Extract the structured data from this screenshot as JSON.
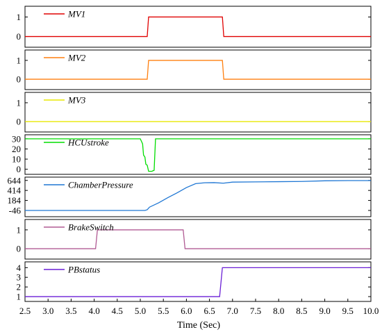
{
  "chart_data": [
    {
      "type": "line",
      "series": [
        {
          "name": "MV1",
          "color": "#e00000",
          "points": [
            [
              2.5,
              0
            ],
            [
              5.15,
              0
            ],
            [
              5.18,
              1
            ],
            [
              6.78,
              1
            ],
            [
              6.81,
              0
            ],
            [
              10.0,
              0
            ]
          ]
        }
      ],
      "yticks": [
        0,
        1
      ],
      "ytick_labels": [
        "0",
        "1"
      ],
      "ylim": [
        -0.55,
        1.55
      ],
      "xlim": [
        2.5,
        10.0
      ],
      "grid": false,
      "legend": "top-left"
    },
    {
      "type": "line",
      "series": [
        {
          "name": "MV2",
          "color": "#ff7f0e",
          "points": [
            [
              2.5,
              0
            ],
            [
              5.15,
              0
            ],
            [
              5.18,
              1
            ],
            [
              6.78,
              1
            ],
            [
              6.81,
              0
            ],
            [
              10.0,
              0
            ]
          ]
        }
      ],
      "yticks": [
        0,
        1
      ],
      "ytick_labels": [
        "0",
        "1"
      ],
      "ylim": [
        -0.55,
        1.55
      ],
      "xlim": [
        2.5,
        10.0
      ],
      "grid": false,
      "legend": "top-left"
    },
    {
      "type": "line",
      "series": [
        {
          "name": "MV3",
          "color": "#e8e800",
          "points": [
            [
              2.5,
              0
            ],
            [
              10.0,
              0
            ]
          ]
        }
      ],
      "yticks": [
        0,
        1
      ],
      "ytick_labels": [
        "0",
        "1"
      ],
      "ylim": [
        -0.55,
        1.55
      ],
      "xlim": [
        2.5,
        10.0
      ],
      "grid": false,
      "legend": "top-left"
    },
    {
      "type": "line",
      "series": [
        {
          "name": "HCUstroke",
          "color": "#00dd00",
          "points": [
            [
              2.5,
              30
            ],
            [
              5.0,
              30
            ],
            [
              5.05,
              25
            ],
            [
              5.07,
              14
            ],
            [
              5.1,
              12
            ],
            [
              5.12,
              5
            ],
            [
              5.15,
              4
            ],
            [
              5.18,
              -2
            ],
            [
              5.25,
              -2
            ],
            [
              5.3,
              -1
            ],
            [
              5.33,
              30
            ],
            [
              10.0,
              30
            ]
          ]
        }
      ],
      "yticks": [
        0,
        10,
        20,
        30
      ],
      "ytick_labels": [
        "0",
        "10",
        "20",
        "30"
      ],
      "ylim": [
        -5,
        34
      ],
      "xlim": [
        2.5,
        10.0
      ],
      "grid": false,
      "legend": "top-left"
    },
    {
      "type": "line",
      "series": [
        {
          "name": "ChamberPressure",
          "color": "#1f77d4",
          "points": [
            [
              2.5,
              -46
            ],
            [
              5.1,
              -46
            ],
            [
              5.15,
              -30
            ],
            [
              5.2,
              30
            ],
            [
              5.4,
              130
            ],
            [
              5.6,
              250
            ],
            [
              5.8,
              360
            ],
            [
              6.0,
              480
            ],
            [
              6.2,
              570
            ],
            [
              6.4,
              590
            ],
            [
              6.6,
              593
            ],
            [
              6.8,
              580
            ],
            [
              7.0,
              605
            ],
            [
              7.5,
              610
            ],
            [
              8.0,
              615
            ],
            [
              8.5,
              620
            ],
            [
              9.0,
              635
            ],
            [
              9.5,
              640
            ],
            [
              10.0,
              640
            ]
          ]
        }
      ],
      "yticks": [
        -46,
        184,
        414,
        644
      ],
      "ytick_labels": [
        "-46",
        "184",
        "414",
        "644"
      ],
      "ylim": [
        -190,
        720
      ],
      "xlim": [
        2.5,
        10.0
      ],
      "grid": false,
      "legend": "top-left"
    },
    {
      "type": "line",
      "series": [
        {
          "name": "BrakeSwitch",
          "color": "#b05a93",
          "points": [
            [
              2.5,
              0
            ],
            [
              4.03,
              0
            ],
            [
              4.07,
              1
            ],
            [
              5.93,
              1
            ],
            [
              5.97,
              0
            ],
            [
              10.0,
              0
            ]
          ]
        }
      ],
      "yticks": [
        0,
        1
      ],
      "ytick_labels": [
        "0",
        "1"
      ],
      "ylim": [
        -0.55,
        1.55
      ],
      "xlim": [
        2.5,
        10.0
      ],
      "grid": false,
      "legend": "top-left"
    },
    {
      "type": "line",
      "series": [
        {
          "name": "PBstatus",
          "color": "#6a1fd6",
          "points": [
            [
              2.5,
              1
            ],
            [
              6.72,
              1
            ],
            [
              6.78,
              4
            ],
            [
              10.0,
              4
            ]
          ]
        }
      ],
      "yticks": [
        1,
        2,
        3,
        4
      ],
      "ytick_labels": [
        "1",
        "2",
        "3",
        "4"
      ],
      "ylim": [
        0.5,
        4.6
      ],
      "xlim": [
        2.5,
        10.0
      ],
      "grid": false,
      "legend": "top-left"
    }
  ],
  "xaxis": {
    "label": "Time (Sec)",
    "ticks": [
      2.5,
      3.0,
      3.5,
      4.0,
      4.5,
      5.0,
      5.5,
      6.0,
      6.5,
      7.0,
      7.5,
      8.0,
      8.5,
      9.0,
      9.5,
      10.0
    ],
    "tick_labels": [
      "2.5",
      "3.0",
      "3.5",
      "4.0",
      "4.5",
      "5.0",
      "5.5",
      "6.0",
      "6.5",
      "7.0",
      "7.5",
      "8.0",
      "8.5",
      "9.0",
      "9.5",
      "10.0"
    ]
  }
}
